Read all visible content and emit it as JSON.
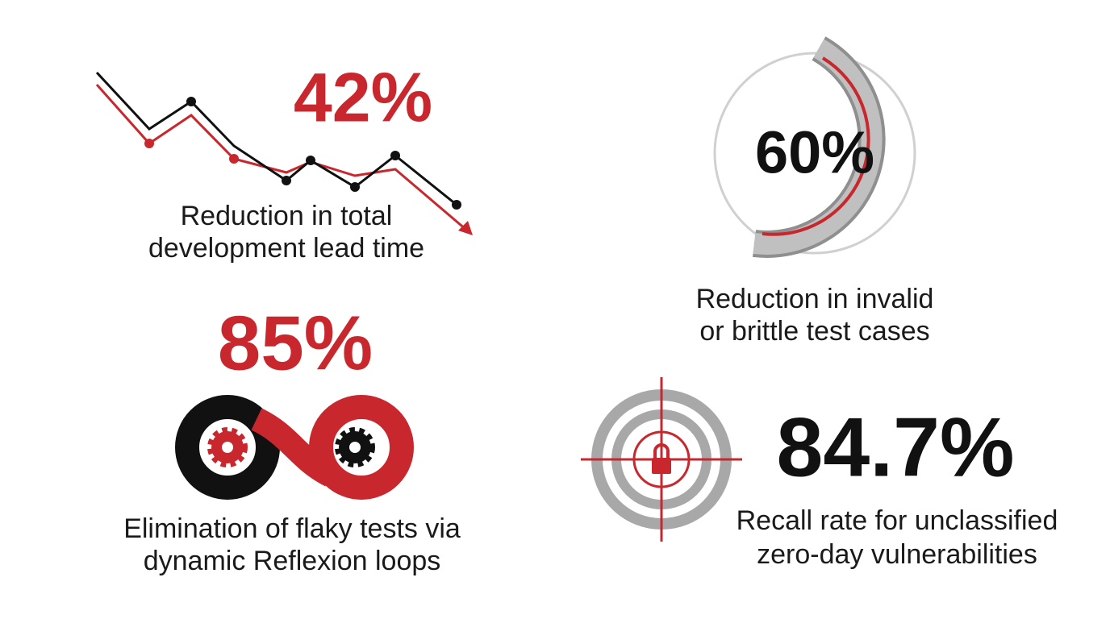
{
  "stats": [
    {
      "value": "42%",
      "label_lines": [
        "Reduction in total",
        "development lead time"
      ]
    },
    {
      "value": "60%",
      "label_lines": [
        "Reduction in invalid",
        "or brittle test cases"
      ]
    },
    {
      "value": "85%",
      "label_lines": [
        "Elimination of flaky tests via",
        "dynamic Reflexion loops"
      ]
    },
    {
      "value": "84.7%",
      "label_lines": [
        "Recall rate for unclassified",
        "zero-day vulnerabilities"
      ]
    }
  ]
}
